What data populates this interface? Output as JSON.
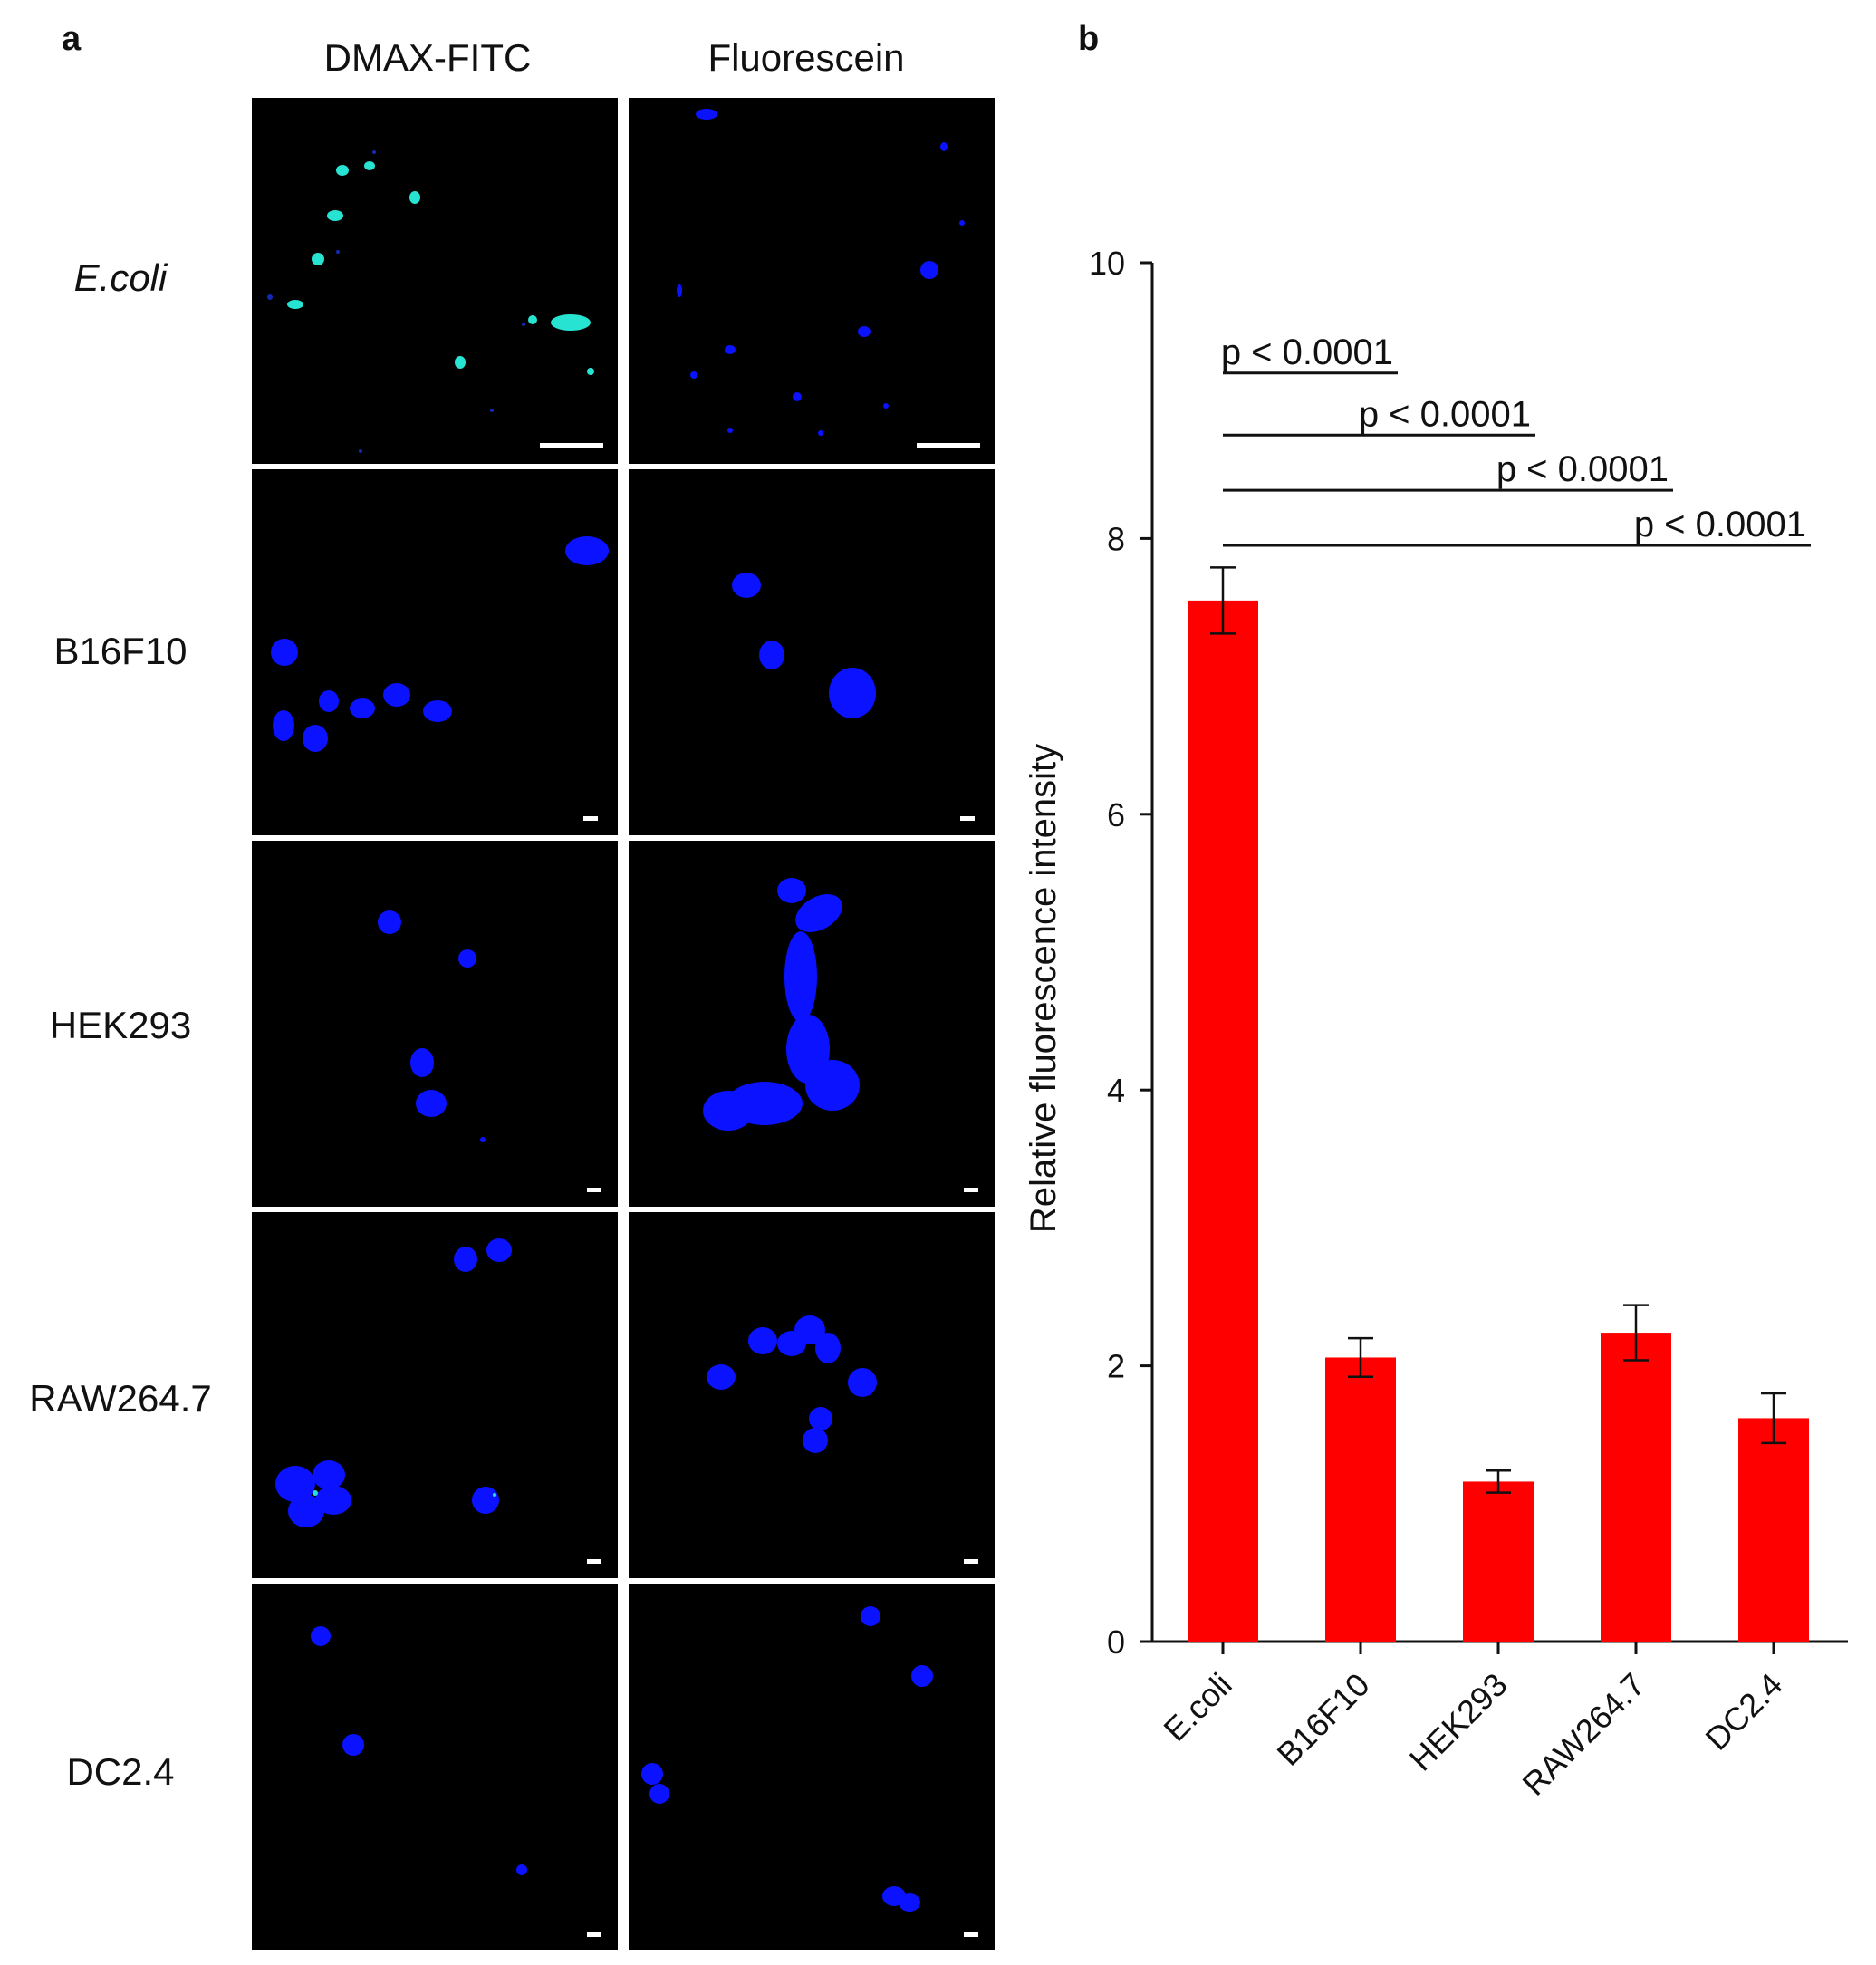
{
  "panel_a": {
    "letter": "a",
    "columns": [
      "DMAX-FITC",
      "Fluorescein"
    ],
    "rows": [
      {
        "label": "E.coli",
        "italic": true
      },
      {
        "label": "B16F10",
        "italic": false
      },
      {
        "label": "HEK293",
        "italic": false
      },
      {
        "label": "RAW264.7",
        "italic": false
      },
      {
        "label": "DC2.4",
        "italic": false
      }
    ],
    "colors": {
      "nucleus": "#0a12ff",
      "fitc": "#27e3d2",
      "background": "#000000",
      "scalebar": "#ffffff"
    }
  },
  "panel_b": {
    "letter": "b",
    "chart_data": {
      "type": "bar",
      "categories": [
        "E.coli",
        "B16F10",
        "HEK293",
        "RAW264.7",
        "DC2.4"
      ],
      "values": [
        7.55,
        2.06,
        1.16,
        2.24,
        1.62
      ],
      "errors": [
        0.24,
        0.14,
        0.08,
        0.2,
        0.18
      ],
      "ylabel": "Relative fluorescence intensity",
      "xlabel": "",
      "ylim": [
        0,
        10
      ],
      "yticks": [
        0,
        2,
        4,
        6,
        8,
        10
      ],
      "bar_color": "#ff0000",
      "grid": false,
      "significance": [
        {
          "from": "E.coli",
          "to": "B16F10",
          "label": "p < 0.0001",
          "y": 9.2
        },
        {
          "from": "E.coli",
          "to": "HEK293",
          "label": "p < 0.0001",
          "y": 8.75
        },
        {
          "from": "E.coli",
          "to": "RAW264.7",
          "label": "p < 0.0001",
          "y": 8.35
        },
        {
          "from": "E.coli",
          "to": "DC2.4",
          "label": "p < 0.0001",
          "y": 7.95
        }
      ]
    }
  }
}
